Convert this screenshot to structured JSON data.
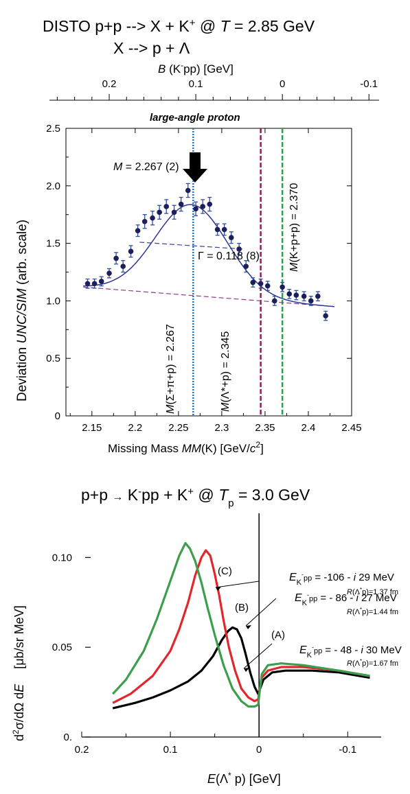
{
  "chart_data": [
    {
      "type": "scatter",
      "title_line1": "DISTO    p+p --> X + K",
      "title_line1_sup": "+",
      "title_line1_end": " @ ",
      "title_line1_T": "T",
      "title_line1_tail": " = 2.85 GeV",
      "title_line2": "X --> p + Λ",
      "top_axis": {
        "label_B": "B",
        "label_rest": " (K",
        "label_sup": "-",
        "label_end": "pp)   [GeV]",
        "ticks": [
          0.2,
          0.1,
          0,
          -0.1
        ],
        "tick_labels": [
          "0.2",
          "0.1",
          "0",
          "-0.1"
        ]
      },
      "panel_label": "large-angle proton",
      "xlabel_pre": "Missing Mass  ",
      "xlabel_it": "MM",
      "xlabel_post": "(K)  [GeV/",
      "xlabel_c": "c",
      "xlabel_sup": "2",
      "xlabel_close": "]",
      "ylabel_pre": "Deviation  ",
      "ylabel_it": "UNC/SIM",
      "ylabel_post": "  (arb. scale)",
      "xlim": [
        2.12,
        2.45
      ],
      "ylim": [
        0,
        2.5
      ],
      "x_ticks": [
        "2.15",
        "2.2",
        "2.25",
        "2.3",
        "2.35",
        "2.4",
        "2.45"
      ],
      "y_ticks": [
        "0",
        "0.5",
        "1.0",
        "1.5",
        "2.0",
        "2.5"
      ],
      "points": [
        {
          "x": 2.145,
          "y": 1.15,
          "err": 0.04
        },
        {
          "x": 2.153,
          "y": 1.15,
          "err": 0.04
        },
        {
          "x": 2.161,
          "y": 1.17,
          "err": 0.04
        },
        {
          "x": 2.17,
          "y": 1.24,
          "err": 0.04
        },
        {
          "x": 2.178,
          "y": 1.37,
          "err": 0.05
        },
        {
          "x": 2.186,
          "y": 1.3,
          "err": 0.05
        },
        {
          "x": 2.195,
          "y": 1.43,
          "err": 0.05
        },
        {
          "x": 2.203,
          "y": 1.61,
          "err": 0.05
        },
        {
          "x": 2.211,
          "y": 1.69,
          "err": 0.06
        },
        {
          "x": 2.22,
          "y": 1.72,
          "err": 0.06
        },
        {
          "x": 2.228,
          "y": 1.77,
          "err": 0.06
        },
        {
          "x": 2.236,
          "y": 1.82,
          "err": 0.06
        },
        {
          "x": 2.245,
          "y": 1.77,
          "err": 0.06
        },
        {
          "x": 2.253,
          "y": 1.84,
          "err": 0.06
        },
        {
          "x": 2.261,
          "y": 1.96,
          "err": 0.06
        },
        {
          "x": 2.27,
          "y": 1.8,
          "err": 0.06
        },
        {
          "x": 2.278,
          "y": 1.82,
          "err": 0.06
        },
        {
          "x": 2.286,
          "y": 1.84,
          "err": 0.06
        },
        {
          "x": 2.295,
          "y": 1.62,
          "err": 0.05
        },
        {
          "x": 2.303,
          "y": 1.62,
          "err": 0.05
        },
        {
          "x": 2.311,
          "y": 1.55,
          "err": 0.05
        },
        {
          "x": 2.32,
          "y": 1.45,
          "err": 0.05
        },
        {
          "x": 2.328,
          "y": 1.3,
          "err": 0.05
        },
        {
          "x": 2.336,
          "y": 1.16,
          "err": 0.04
        },
        {
          "x": 2.345,
          "y": 1.15,
          "err": 0.04
        },
        {
          "x": 2.353,
          "y": 1.13,
          "err": 0.04
        },
        {
          "x": 2.361,
          "y": 1.0,
          "err": 0.04
        },
        {
          "x": 2.37,
          "y": 1.12,
          "err": 0.04
        },
        {
          "x": 2.378,
          "y": 1.06,
          "err": 0.04
        },
        {
          "x": 2.386,
          "y": 1.05,
          "err": 0.04
        },
        {
          "x": 2.395,
          "y": 1.04,
          "err": 0.04
        },
        {
          "x": 2.403,
          "y": 1.0,
          "err": 0.04
        },
        {
          "x": 2.411,
          "y": 1.04,
          "err": 0.04
        },
        {
          "x": 2.42,
          "y": 0.87,
          "err": 0.04
        }
      ],
      "fit": {
        "amp": 0.79,
        "center": 2.265,
        "sigma": 0.042,
        "bg_at_left": 1.12,
        "bg_at_right": 0.95,
        "x_range": [
          2.14,
          2.43
        ]
      },
      "background_line": {
        "x": [
          2.14,
          2.43
        ],
        "y": [
          1.12,
          0.95
        ]
      },
      "width_line": {
        "x": [
          2.205,
          2.325
        ],
        "y": [
          1.51,
          1.45
        ]
      },
      "vlines": [
        {
          "x": 2.267,
          "color": "#2a6fc0",
          "style": "dotted"
        },
        {
          "x": 2.345,
          "color": "#8b2252",
          "style": "dashed"
        },
        {
          "x": 2.37,
          "color": "#2e9e48",
          "style": "dashed"
        }
      ],
      "annotations": {
        "mass_it": "M",
        "mass_val": " = 2.267 (2)",
        "gamma": "Γ = 0.118 (8)",
        "sigma_line_it": "M",
        "sigma_line": "(Σ+π+p) = 2.267",
        "lambda_line_it": "M",
        "lambda_line": "(Λ*+p) = 2.345",
        "kpp_line_it": "M",
        "kpp_line": "(K+p+p) = 2.370"
      }
    },
    {
      "type": "line",
      "title_pre": "p+p ",
      "title_arrow": "→",
      "title_mid": " K",
      "title_sup": "-",
      "title_mid2": "pp + K",
      "title_sup2": "+",
      "title_at": " @ ",
      "title_T": "T",
      "title_p": "p",
      "title_tail": " = 3.0 GeV",
      "xlabel_E": "E",
      "xlabel_rest": "(Λ",
      "xlabel_star": "*",
      "xlabel_end": " p)   [GeV]",
      "ylabel_main": "d",
      "ylabel_sup": "2",
      "ylabel_rest": "σ/dΩ d",
      "ylabel_E": "E",
      "ylabel_unit": "[μb/sr MeV]",
      "x_ticks": [
        "0.2",
        "0.1",
        "0",
        "-0.1"
      ],
      "y_ticks": [
        "0.",
        "0.05",
        "0.10"
      ],
      "xlim": [
        0.2,
        -0.13
      ],
      "ylim": [
        0,
        0.12
      ],
      "series": [
        {
          "label": "(A)",
          "color": "#000000",
          "x": [
            0.165,
            0.14,
            0.12,
            0.1,
            0.08,
            0.065,
            0.052,
            0.042,
            0.035,
            0.03,
            0.025,
            0.02,
            0.015,
            0.01,
            0.005,
            0.001,
            -0.005,
            -0.015,
            -0.03,
            -0.06,
            -0.09,
            -0.125
          ],
          "y": [
            0.016,
            0.019,
            0.022,
            0.026,
            0.031,
            0.037,
            0.045,
            0.054,
            0.059,
            0.061,
            0.06,
            0.055,
            0.046,
            0.036,
            0.028,
            0.024,
            0.032,
            0.036,
            0.037,
            0.037,
            0.036,
            0.033
          ]
        },
        {
          "label": "(B)",
          "color": "#e3262b",
          "x": [
            0.165,
            0.145,
            0.12,
            0.1,
            0.09,
            0.08,
            0.072,
            0.065,
            0.06,
            0.055,
            0.05,
            0.045,
            0.04,
            0.034,
            0.027,
            0.02,
            0.012,
            0.005,
            0.001,
            -0.003,
            -0.01,
            -0.025,
            -0.05,
            -0.09,
            -0.125
          ],
          "y": [
            0.019,
            0.024,
            0.034,
            0.048,
            0.06,
            0.075,
            0.09,
            0.1,
            0.104,
            0.101,
            0.091,
            0.079,
            0.065,
            0.05,
            0.037,
            0.027,
            0.022,
            0.02,
            0.021,
            0.033,
            0.037,
            0.039,
            0.039,
            0.037,
            0.034
          ]
        },
        {
          "label": "(C)",
          "color": "#3a9e4d",
          "x": [
            0.165,
            0.15,
            0.13,
            0.115,
            0.1,
            0.09,
            0.083,
            0.078,
            0.072,
            0.065,
            0.058,
            0.05,
            0.04,
            0.03,
            0.02,
            0.012,
            0.005,
            0.001,
            -0.003,
            -0.01,
            -0.025,
            -0.05,
            -0.09,
            -0.125
          ],
          "y": [
            0.024,
            0.032,
            0.048,
            0.066,
            0.087,
            0.101,
            0.108,
            0.105,
            0.098,
            0.086,
            0.072,
            0.057,
            0.04,
            0.027,
            0.02,
            0.017,
            0.017,
            0.018,
            0.035,
            0.04,
            0.041,
            0.04,
            0.037,
            0.034
          ]
        }
      ],
      "labels": [
        {
          "tag": "(A)",
          "E_pre": "E",
          "E_sub": "K",
          "E_subsup": "-",
          "E_sub2": "pp",
          "E_val": " = - 48 - ",
          "E_i": "i",
          "E_val2": " 30 MeV",
          "R_pre": "R",
          "R_mid": "(Λ",
          "R_star": "*",
          "R_post": "p)=1.67 fm"
        },
        {
          "tag": "(B)",
          "E_pre": "E",
          "E_sub": "K",
          "E_subsup": "-",
          "E_sub2": "pp",
          "E_val": " = - 86 - ",
          "E_i": "i",
          "E_val2": " 27 MeV",
          "R_pre": "R",
          "R_mid": "(Λ",
          "R_star": "*",
          "R_post": "p)=1.44 fm"
        },
        {
          "tag": "(C)",
          "E_pre": "E",
          "E_sub": "K",
          "E_subsup": "-",
          "E_sub2": "pp",
          "E_val": " = -106 - ",
          "E_i": "i",
          "E_val2": " 29 MeV",
          "R_pre": "R",
          "R_mid": "(Λ",
          "R_star": "*",
          "R_post": "p)=1.37 fm"
        }
      ]
    }
  ]
}
